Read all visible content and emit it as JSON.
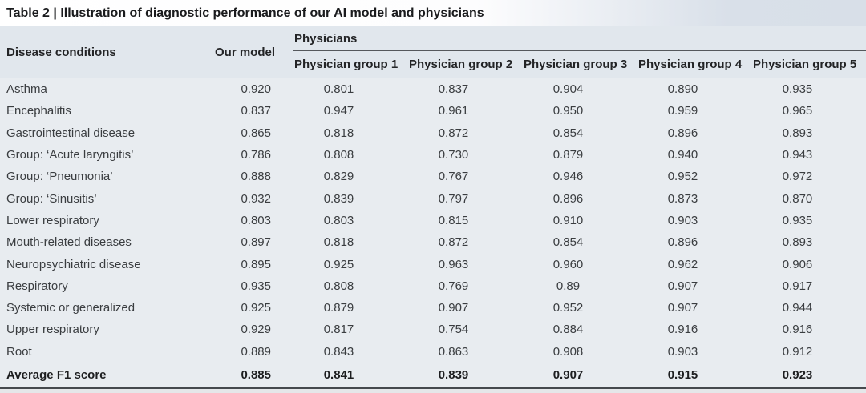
{
  "table": {
    "title": "Table 2 | Illustration of diagnostic performance of our AI model and physicians",
    "header": {
      "disease": "Disease conditions",
      "our_model": "Our model",
      "physicians_label": "Physicians",
      "physician_groups": [
        "Physician group 1",
        "Physician group 2",
        "Physician group 3",
        "Physician group 4",
        "Physician group 5"
      ]
    },
    "rows": [
      {
        "condition": "Asthma",
        "our_model": "0.920",
        "physicians": [
          "0.801",
          "0.837",
          "0.904",
          "0.890",
          "0.935"
        ]
      },
      {
        "condition": "Encephalitis",
        "our_model": "0.837",
        "physicians": [
          "0.947",
          "0.961",
          "0.950",
          "0.959",
          "0.965"
        ]
      },
      {
        "condition": "Gastrointestinal disease",
        "our_model": "0.865",
        "physicians": [
          "0.818",
          "0.872",
          "0.854",
          "0.896",
          "0.893"
        ]
      },
      {
        "condition": "Group: ‘Acute laryngitis’",
        "our_model": "0.786",
        "physicians": [
          "0.808",
          "0.730",
          "0.879",
          "0.940",
          "0.943"
        ]
      },
      {
        "condition": "Group: ‘Pneumonia’",
        "our_model": "0.888",
        "physicians": [
          "0.829",
          "0.767",
          "0.946",
          "0.952",
          "0.972"
        ]
      },
      {
        "condition": "Group: ‘Sinusitis’",
        "our_model": "0.932",
        "physicians": [
          "0.839",
          "0.797",
          "0.896",
          "0.873",
          "0.870"
        ]
      },
      {
        "condition": "Lower respiratory",
        "our_model": "0.803",
        "physicians": [
          "0.803",
          "0.815",
          "0.910",
          "0.903",
          "0.935"
        ]
      },
      {
        "condition": "Mouth-related diseases",
        "our_model": "0.897",
        "physicians": [
          "0.818",
          "0.872",
          "0.854",
          "0.896",
          "0.893"
        ]
      },
      {
        "condition": "Neuropsychiatric disease",
        "our_model": "0.895",
        "physicians": [
          "0.925",
          "0.963",
          "0.960",
          "0.962",
          "0.906"
        ]
      },
      {
        "condition": "Respiratory",
        "our_model": "0.935",
        "physicians": [
          "0.808",
          "0.769",
          "0.89",
          "0.907",
          "0.917"
        ]
      },
      {
        "condition": "Systemic or generalized",
        "our_model": "0.925",
        "physicians": [
          "0.879",
          "0.907",
          "0.952",
          "0.907",
          "0.944"
        ]
      },
      {
        "condition": "Upper respiratory",
        "our_model": "0.929",
        "physicians": [
          "0.817",
          "0.754",
          "0.884",
          "0.916",
          "0.916"
        ]
      },
      {
        "condition": "Root",
        "our_model": "0.889",
        "physicians": [
          "0.843",
          "0.863",
          "0.908",
          "0.903",
          "0.912"
        ]
      }
    ],
    "footer": {
      "condition": "Average F1 score",
      "our_model": "0.885",
      "physicians": [
        "0.841",
        "0.839",
        "0.907",
        "0.915",
        "0.923"
      ]
    }
  },
  "colors": {
    "body_background": "#e8ecf0",
    "header_background": "#e1e7ed",
    "title_gradient_end": "#d8dfe8",
    "rule": "#4b4f54",
    "text": "#3a3d40",
    "bold_text": "#1d1e20"
  }
}
